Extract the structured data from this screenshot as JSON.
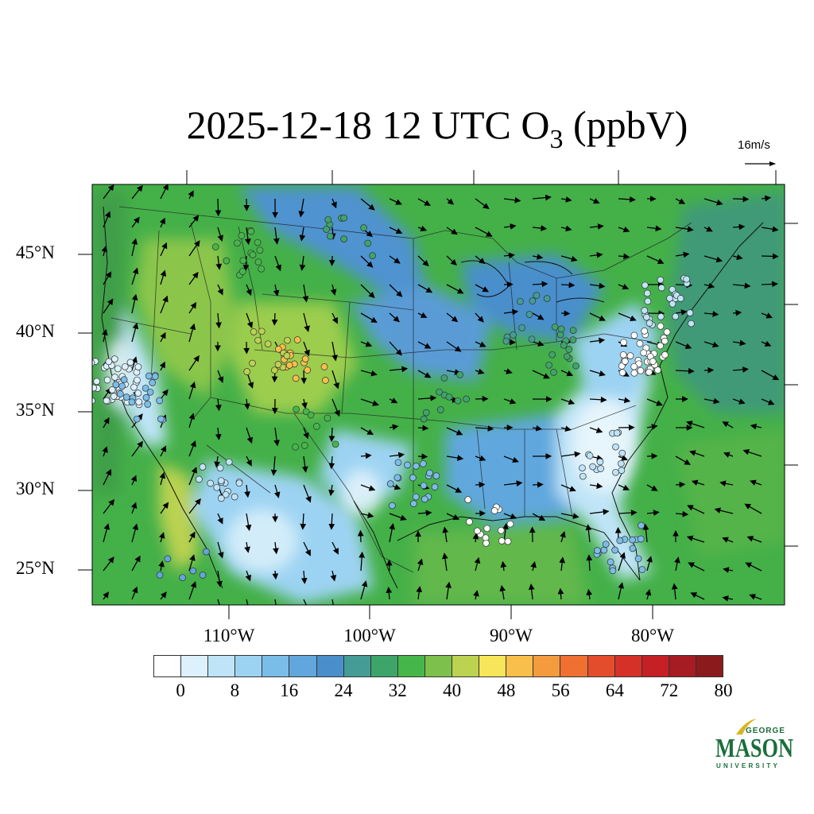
{
  "title": {
    "main": "2025-12-18 12 UTC O",
    "subscript": "3",
    "suffix": " (ppbV)"
  },
  "reference_vector": {
    "label": "16m/s"
  },
  "axes": {
    "lat_ticks": [
      "45°N",
      "40°N",
      "35°N",
      "30°N",
      "25°N"
    ],
    "lon_ticks": [
      "110°W",
      "100°W",
      "90°W",
      "80°W"
    ]
  },
  "colorbar": {
    "labels": [
      "0",
      "8",
      "16",
      "24",
      "32",
      "40",
      "48",
      "56",
      "64",
      "72",
      "80"
    ],
    "colors": [
      "#ffffff",
      "#dcf1fb",
      "#bfe4f7",
      "#9dd3f2",
      "#7bbde9",
      "#61a7dd",
      "#4a8fcc",
      "#459c96",
      "#3ea56a",
      "#45b74a",
      "#7dc04c",
      "#bcd251",
      "#f8e65a",
      "#f8c04a",
      "#f49b3e",
      "#ef7030",
      "#e44d2c",
      "#d63128",
      "#c52026",
      "#a71b22",
      "#8b1a1d"
    ]
  },
  "logo": {
    "line1": "GEORGE",
    "line2": "MASON",
    "line3": "UNIVERSITY"
  }
}
